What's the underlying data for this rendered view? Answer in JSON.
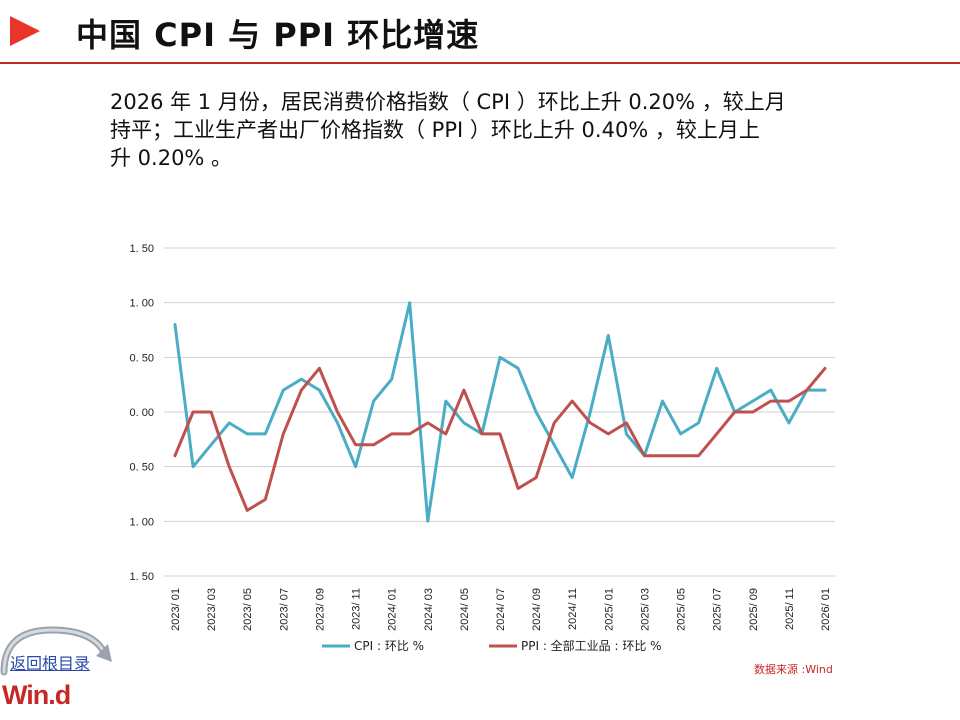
{
  "header": {
    "title": "中国 CPI 与 PPI 环比增速"
  },
  "summary": {
    "line1": "2026 年 1 月份，居民消费价格指数（ CPI ）环比上升 0.20% ，较上月",
    "line2": "持平；工业生产者出厂价格指数（ PPI ）环比上升 0.40%  ，较上月上",
    "line3": "升 0.20% 。"
  },
  "chart_data": {
    "type": "line",
    "title": "",
    "xlabel": "",
    "ylabel": "",
    "ylim": [
      -1.5,
      1.5
    ],
    "yticks": [
      1.5,
      1.0,
      0.5,
      0.0,
      -0.5,
      -1.0,
      -1.5
    ],
    "ytick_labels": [
      "1. 50",
      "1. 00",
      "0. 50",
      "0. 00",
      "0. 50",
      "1. 00",
      "1. 50"
    ],
    "grid": true,
    "legend_position": "bottom",
    "x": [
      "2023-01",
      "2023-02",
      "2023-03",
      "2023-04",
      "2023-05",
      "2023-06",
      "2023-07",
      "2023-08",
      "2023-09",
      "2023-10",
      "2023-11",
      "2023-12",
      "2024-01",
      "2024-02",
      "2024-03",
      "2024-04",
      "2024-05",
      "2024-06",
      "2024-07",
      "2024-08",
      "2024-09",
      "2024-10",
      "2024-11",
      "2024-12",
      "2025-01",
      "2025-02",
      "2025-03",
      "2025-04",
      "2025-05",
      "2025-06",
      "2025-07",
      "2025-08",
      "2025-09",
      "2025-10",
      "2025-11",
      "2025-12",
      "2026-01"
    ],
    "xtick_labels": [
      "2023/ 01",
      "2023/ 03",
      "2023/ 05",
      "2023/ 07",
      "2023/ 09",
      "2023/ 11",
      "2024/ 01",
      "2024/ 03",
      "2024/ 05",
      "2024/ 07",
      "2024/ 09",
      "2024/ 11",
      "2025/ 01",
      "2025/ 03",
      "2025/ 05",
      "2025/ 07",
      "2025/ 09",
      "2025/ 11",
      "2026/ 01"
    ],
    "series": [
      {
        "name": "CPI : 环比  %",
        "color": "#4bacc6",
        "values": [
          0.8,
          -0.5,
          -0.3,
          -0.1,
          -0.2,
          -0.2,
          0.2,
          0.3,
          0.2,
          -0.1,
          -0.5,
          0.1,
          0.3,
          1.0,
          -1.0,
          0.1,
          -0.1,
          -0.2,
          0.5,
          0.4,
          0.0,
          -0.3,
          -0.6,
          0.0,
          0.7,
          -0.2,
          -0.4,
          0.1,
          -0.2,
          -0.1,
          0.4,
          0.0,
          0.1,
          0.2,
          -0.1,
          0.2,
          0.2
        ]
      },
      {
        "name": "PPI : 全部工业品 : 环比  %",
        "color": "#c0504d",
        "values": [
          -0.4,
          0.0,
          0.0,
          -0.5,
          -0.9,
          -0.8,
          -0.2,
          0.2,
          0.4,
          0.0,
          -0.3,
          -0.3,
          -0.2,
          -0.2,
          -0.1,
          -0.2,
          0.2,
          -0.2,
          -0.2,
          -0.7,
          -0.6,
          -0.1,
          0.1,
          -0.1,
          -0.2,
          -0.1,
          -0.4,
          -0.4,
          -0.4,
          -0.4,
          -0.2,
          0.0,
          0.0,
          0.1,
          0.1,
          0.2,
          0.4
        ]
      }
    ]
  },
  "source": {
    "text": "数据来源 :Wind"
  },
  "nav": {
    "back_label": "返回根目录"
  },
  "brand": {
    "logo_text": "Win.d"
  }
}
